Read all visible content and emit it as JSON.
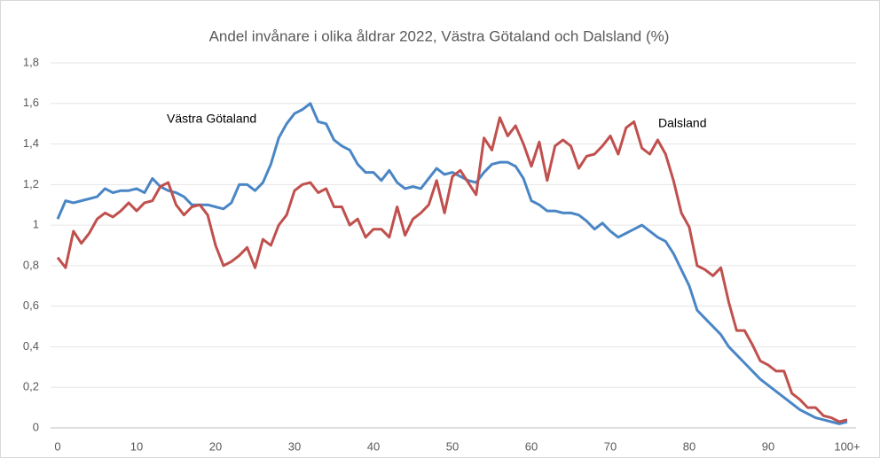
{
  "chart_data": {
    "type": "line",
    "title": "Andel invånare i olika åldrar 2022, Västra Götaland och Dalsland (%)",
    "categories": [
      "0",
      null,
      null,
      null,
      null,
      null,
      null,
      null,
      null,
      null,
      "10",
      null,
      null,
      null,
      null,
      null,
      null,
      null,
      null,
      null,
      "20",
      null,
      null,
      null,
      null,
      null,
      null,
      null,
      null,
      null,
      "30",
      null,
      null,
      null,
      null,
      null,
      null,
      null,
      null,
      null,
      "40",
      null,
      null,
      null,
      null,
      null,
      null,
      null,
      null,
      null,
      "50",
      null,
      null,
      null,
      null,
      null,
      null,
      null,
      null,
      null,
      "60",
      null,
      null,
      null,
      null,
      null,
      null,
      null,
      null,
      null,
      "70",
      null,
      null,
      null,
      null,
      null,
      null,
      null,
      null,
      null,
      "80",
      null,
      null,
      null,
      null,
      null,
      null,
      null,
      null,
      null,
      "90",
      null,
      null,
      null,
      null,
      null,
      null,
      null,
      null,
      null,
      "100+"
    ],
    "series": [
      {
        "name": "Västra Götaland",
        "color": "#4a86c5",
        "values": [
          1.03,
          1.12,
          1.11,
          1.12,
          1.13,
          1.14,
          1.18,
          1.16,
          1.17,
          1.17,
          1.18,
          1.16,
          1.23,
          1.19,
          1.17,
          1.16,
          1.14,
          1.1,
          1.1,
          1.1,
          1.09,
          1.08,
          1.11,
          1.2,
          1.2,
          1.17,
          1.21,
          1.3,
          1.43,
          1.5,
          1.55,
          1.57,
          1.6,
          1.51,
          1.5,
          1.42,
          1.39,
          1.37,
          1.3,
          1.26,
          1.26,
          1.22,
          1.27,
          1.21,
          1.18,
          1.19,
          1.18,
          1.23,
          1.28,
          1.25,
          1.26,
          1.24,
          1.22,
          1.21,
          1.26,
          1.3,
          1.31,
          1.31,
          1.29,
          1.23,
          1.12,
          1.1,
          1.07,
          1.07,
          1.06,
          1.06,
          1.05,
          1.02,
          0.98,
          1.01,
          0.97,
          0.94,
          0.96,
          0.98,
          1.0,
          0.97,
          0.94,
          0.92,
          0.86,
          0.78,
          0.7,
          0.58,
          0.54,
          0.5,
          0.46,
          0.4,
          0.36,
          0.32,
          0.28,
          0.24,
          0.21,
          0.18,
          0.15,
          0.12,
          0.09,
          0.07,
          0.05,
          0.04,
          0.03,
          0.02,
          0.03
        ]
      },
      {
        "name": "Dalsland",
        "color": "#c0504d",
        "values": [
          0.84,
          0.79,
          0.97,
          0.91,
          0.96,
          1.03,
          1.06,
          1.04,
          1.07,
          1.11,
          1.07,
          1.11,
          1.12,
          1.19,
          1.21,
          1.1,
          1.05,
          1.09,
          1.1,
          1.05,
          0.9,
          0.8,
          0.82,
          0.85,
          0.89,
          0.79,
          0.93,
          0.9,
          1.0,
          1.05,
          1.17,
          1.2,
          1.21,
          1.16,
          1.18,
          1.09,
          1.09,
          1.0,
          1.03,
          0.94,
          0.98,
          0.98,
          0.94,
          1.09,
          0.95,
          1.03,
          1.06,
          1.1,
          1.22,
          1.06,
          1.24,
          1.27,
          1.21,
          1.15,
          1.43,
          1.37,
          1.53,
          1.44,
          1.49,
          1.4,
          1.29,
          1.41,
          1.22,
          1.39,
          1.42,
          1.39,
          1.28,
          1.34,
          1.35,
          1.39,
          1.44,
          1.35,
          1.48,
          1.51,
          1.38,
          1.35,
          1.42,
          1.35,
          1.22,
          1.06,
          0.99,
          0.8,
          0.78,
          0.75,
          0.79,
          0.62,
          0.48,
          0.48,
          0.41,
          0.33,
          0.31,
          0.28,
          0.28,
          0.17,
          0.14,
          0.1,
          0.1,
          0.06,
          0.05,
          0.03,
          0.04
        ]
      }
    ],
    "ylim": [
      0,
      1.8
    ],
    "yticks": [
      0,
      {
        "value": 0.2,
        "label": "0,2"
      },
      {
        "value": 0.4,
        "label": "0,4"
      },
      {
        "value": 0.6,
        "label": "0,6"
      },
      {
        "value": 0.8,
        "label": "0,8"
      },
      1,
      {
        "value": 1.2,
        "label": "1,2"
      },
      {
        "value": 1.4,
        "label": "1,4"
      },
      {
        "value": 1.6,
        "label": "1,6"
      },
      {
        "value": 1.8,
        "label": "1,8"
      }
    ],
    "grid": true
  }
}
